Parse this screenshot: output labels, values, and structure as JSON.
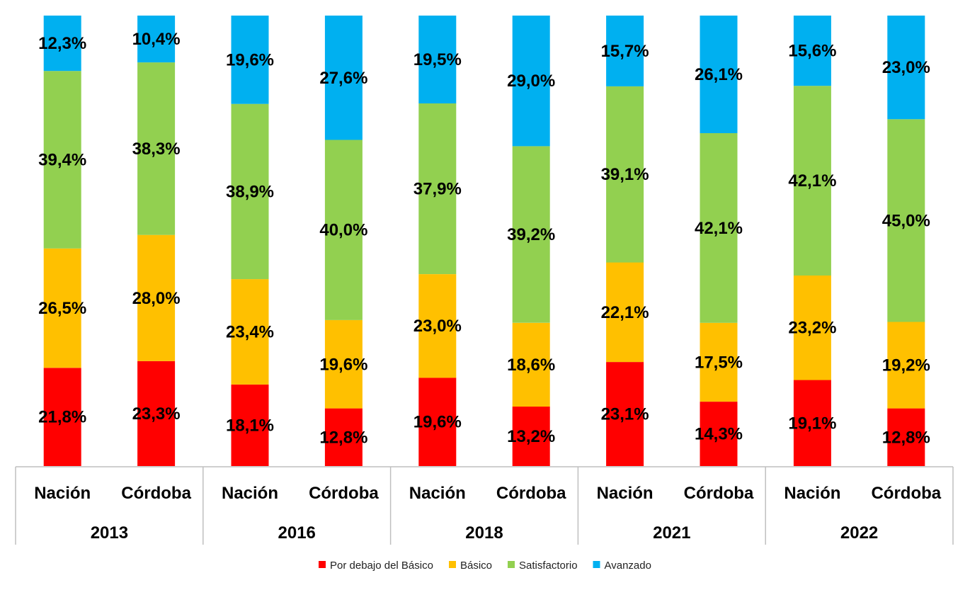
{
  "chart_data": {
    "type": "bar",
    "stacked": true,
    "normalized": true,
    "groups": [
      {
        "label": "2013",
        "categories": [
          "Nación",
          "Córdoba"
        ]
      },
      {
        "label": "2016",
        "categories": [
          "Nación",
          "Córdoba"
        ]
      },
      {
        "label": "2018",
        "categories": [
          "Nación",
          "Córdoba"
        ]
      },
      {
        "label": "2021",
        "categories": [
          "Nación",
          "Córdoba"
        ]
      },
      {
        "label": "2022",
        "categories": [
          "Nación",
          "Córdoba"
        ]
      }
    ],
    "categories": [
      "Nación",
      "Córdoba",
      "Nación",
      "Córdoba",
      "Nación",
      "Córdoba",
      "Nación",
      "Córdoba",
      "Nación",
      "Córdoba"
    ],
    "series": [
      {
        "name": "Por debajo del Básico",
        "color": "#ff0000",
        "values": [
          21.8,
          23.3,
          18.1,
          12.8,
          19.6,
          13.2,
          23.1,
          14.3,
          19.1,
          12.8
        ],
        "labels": [
          "21,8%",
          "23,3%",
          "18,1%",
          "12,8%",
          "19,6%",
          "13,2%",
          "23,1%",
          "14,3%",
          "19,1%",
          "12,8%"
        ]
      },
      {
        "name": "Básico",
        "color": "#ffc000",
        "values": [
          26.5,
          28.0,
          23.4,
          19.6,
          23.0,
          18.6,
          22.1,
          17.5,
          23.2,
          19.2
        ],
        "labels": [
          "26,5%",
          "28,0%",
          "23,4%",
          "19,6%",
          "23,0%",
          "18,6%",
          "22,1%",
          "17,5%",
          "23,2%",
          "19,2%"
        ]
      },
      {
        "name": "Satisfactorio",
        "color": "#92d050",
        "values": [
          39.4,
          38.3,
          38.9,
          40.0,
          37.9,
          39.2,
          39.1,
          42.1,
          42.1,
          45.0
        ],
        "labels": [
          "39,4%",
          "38,3%",
          "38,9%",
          "40,0%",
          "37,9%",
          "39,2%",
          "39,1%",
          "42,1%",
          "42,1%",
          "45,0%"
        ]
      },
      {
        "name": "Avanzado",
        "color": "#00b0f0",
        "values": [
          12.3,
          10.4,
          19.6,
          27.6,
          19.5,
          29.0,
          15.7,
          26.1,
          15.6,
          23.0
        ],
        "labels": [
          "12,3%",
          "10,4%",
          "19,6%",
          "27,6%",
          "19,5%",
          "29,0%",
          "15,7%",
          "26,1%",
          "15,6%",
          "23,0%"
        ]
      }
    ],
    "title": "",
    "xlabel": "",
    "ylabel": "",
    "ylim": [
      0,
      100
    ],
    "grid": false,
    "legend": "bottom"
  }
}
